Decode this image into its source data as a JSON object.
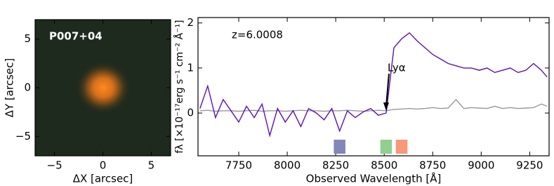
{
  "chart_data": [
    {
      "type": "image",
      "label": "P007+04",
      "xlabel": "ΔX [arcsec]",
      "ylabel": "ΔY [arcsec]",
      "xlim": [
        -7,
        7
      ],
      "ylim": [
        -7,
        7
      ],
      "xticks": [
        {
          "value": -5,
          "label": "−5"
        },
        0,
        5
      ],
      "yticks": [
        {
          "value": -5,
          "label": "−5"
        },
        0,
        5
      ]
    },
    {
      "type": "line",
      "xlabel": "Observed Wavelength [Å]",
      "ylabel": "fλ [×10⁻¹⁷erg s⁻¹ cm⁻² Å⁻¹]",
      "xlim": [
        7540,
        9350
      ],
      "ylim": [
        -0.95,
        2.12
      ],
      "xticks": [
        7750,
        8000,
        8250,
        8500,
        8750,
        9000,
        9250
      ],
      "yticks": [
        0,
        1,
        2
      ],
      "redshift_label": "z=6.0008",
      "annotation": {
        "text": "Lyα",
        "x": 8510
      },
      "x": [
        7550,
        7590,
        7630,
        7670,
        7710,
        7750,
        7790,
        7830,
        7870,
        7910,
        7950,
        7990,
        8030,
        8070,
        8110,
        8150,
        8190,
        8230,
        8270,
        8310,
        8350,
        8390,
        8430,
        8470,
        8510,
        8550,
        8590,
        8630,
        8670,
        8710,
        8750,
        8790,
        8830,
        8870,
        8910,
        8950,
        8990,
        9030,
        9070,
        9110,
        9150,
        9190,
        9230,
        9270,
        9310,
        9340
      ],
      "series": [
        {
          "color": "#5b10bd",
          "values": [
            0.1,
            0.6,
            -0.1,
            0.3,
            0.05,
            -0.2,
            0.15,
            -0.1,
            0.2,
            -0.5,
            0.1,
            -0.2,
            0.05,
            -0.3,
            0.1,
            0.0,
            -0.15,
            0.1,
            -0.4,
            0.05,
            -0.1,
            0.02,
            0.1,
            -0.05,
            0.0,
            1.45,
            1.65,
            1.78,
            1.6,
            1.45,
            1.3,
            1.2,
            1.1,
            1.05,
            1.0,
            1.0,
            0.95,
            1.0,
            0.9,
            0.95,
            1.0,
            0.9,
            0.95,
            1.1,
            0.95,
            0.8
          ]
        },
        {
          "color": "#999999",
          "values": [
            0.05,
            0.06,
            0.04,
            0.05,
            0.05,
            0.04,
            0.05,
            0.06,
            0.04,
            0.05,
            0.05,
            0.04,
            0.05,
            0.06,
            0.05,
            0.05,
            0.04,
            0.05,
            0.05,
            0.06,
            0.05,
            0.04,
            0.05,
            0.06,
            0.05,
            0.08,
            0.09,
            0.1,
            0.09,
            0.1,
            0.12,
            0.1,
            0.11,
            0.3,
            0.1,
            0.12,
            0.11,
            0.1,
            0.15,
            0.1,
            0.12,
            0.1,
            0.11,
            0.12,
            0.2,
            0.15
          ]
        }
      ],
      "filters": [
        {
          "xrange": [
            8240,
            8300
          ],
          "color": "#8387b8"
        },
        {
          "xrange": [
            8480,
            8540
          ],
          "color": "#8fd08f"
        },
        {
          "xrange": [
            8560,
            8620
          ],
          "color": "#f7987a"
        }
      ]
    }
  ]
}
